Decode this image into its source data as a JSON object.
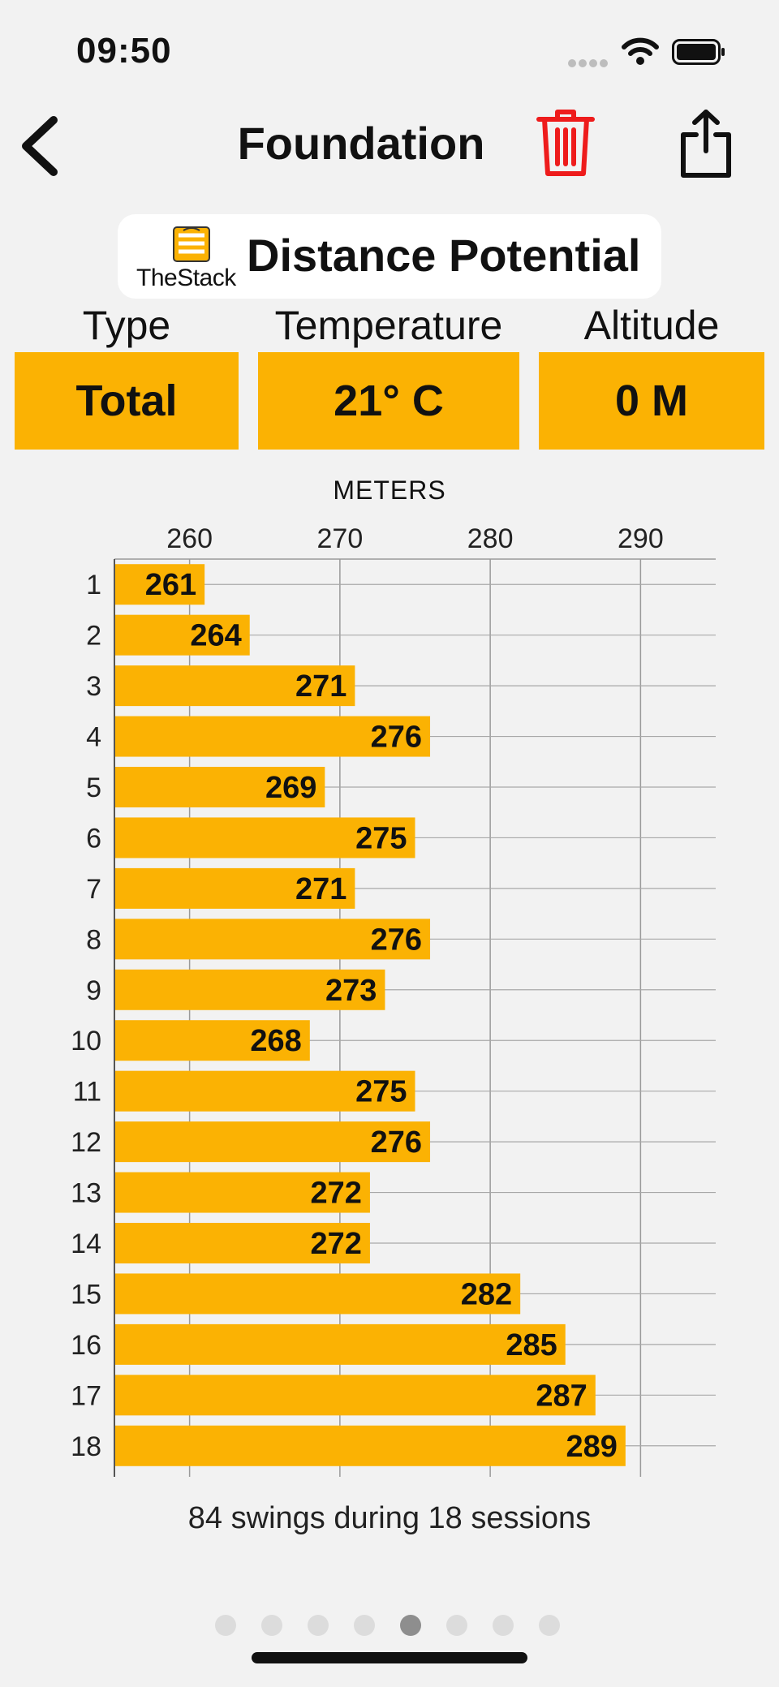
{
  "status": {
    "time": "09:50"
  },
  "header": {
    "title": "Foundation"
  },
  "icons": {
    "back": "chevron-left-icon",
    "trash": "trash-icon",
    "share": "share-icon",
    "trash_color": "#ee1c1c"
  },
  "card": {
    "logo_text": "TheStack",
    "title": "Distance Potential"
  },
  "info": {
    "type_label": "Type",
    "type_value": "Total",
    "temp_label": "Temperature",
    "temp_value": "21° C",
    "alt_label": "Altitude",
    "alt_value": "0 M"
  },
  "chart_data": {
    "type": "bar",
    "orientation": "horizontal",
    "xlabel": "METERS",
    "xlim": [
      255,
      295
    ],
    "xticks": [
      260,
      270,
      280,
      290
    ],
    "categories": [
      "1",
      "2",
      "3",
      "4",
      "5",
      "6",
      "7",
      "8",
      "9",
      "10",
      "11",
      "12",
      "13",
      "14",
      "15",
      "16",
      "17",
      "18"
    ],
    "values": [
      261,
      264,
      271,
      276,
      269,
      275,
      271,
      276,
      273,
      268,
      275,
      276,
      272,
      272,
      282,
      285,
      287,
      289
    ],
    "bar_color": "#fbb203",
    "grid": true
  },
  "footer": {
    "summary": "84 swings during 18 sessions"
  },
  "pager": {
    "count": 8,
    "active": 4
  }
}
